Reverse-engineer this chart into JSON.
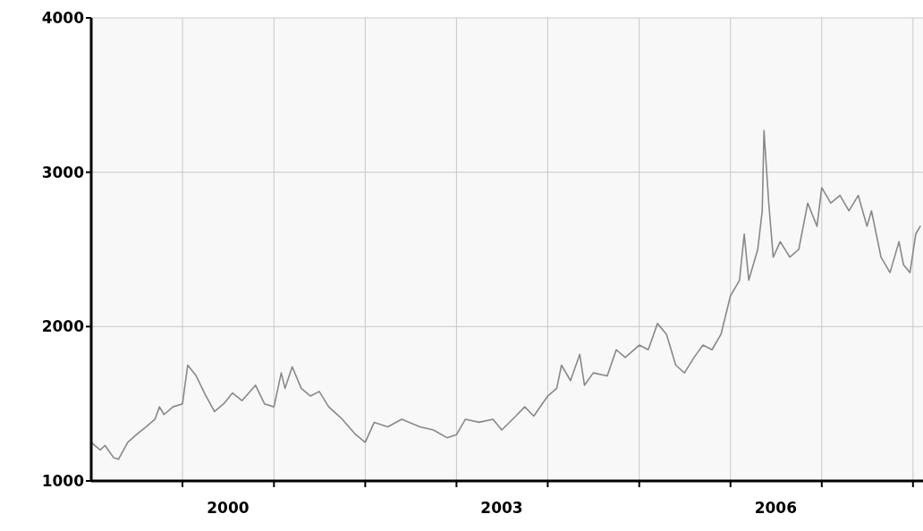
{
  "chart_data": {
    "type": "line",
    "xlim": [
      "1999-01-01",
      "2008-02-10"
    ],
    "ylim": [
      1000,
      4000
    ],
    "yticks": [
      1000,
      2000,
      3000,
      4000
    ],
    "xticks": [
      {
        "value": "2000-01-01",
        "label": null
      },
      {
        "value": "2000-07-01",
        "label": "2000"
      },
      {
        "value": "2001-01-01",
        "label": null
      },
      {
        "value": "2002-01-01",
        "label": null
      },
      {
        "value": "2003-01-01",
        "label": null
      },
      {
        "value": "2003-07-01",
        "label": "2003"
      },
      {
        "value": "2004-01-01",
        "label": null
      },
      {
        "value": "2005-01-01",
        "label": null
      },
      {
        "value": "2006-01-01",
        "label": null
      },
      {
        "value": "2006-07-01",
        "label": "2006"
      },
      {
        "value": "2007-01-01",
        "label": null
      },
      {
        "value": "2008-01-01",
        "label": null
      }
    ],
    "grid": true,
    "marker": "none",
    "line_style": "solid",
    "series": [
      {
        "color": "#888888",
        "x": [
          "1999-01-01",
          "1999-02-06",
          "1999-02-25",
          "1999-04-01",
          "1999-04-20",
          "1999-05-27",
          "1999-07-01",
          "1999-08-08",
          "1999-09-13",
          "1999-10-01",
          "1999-10-19",
          "1999-11-24",
          "2000-01-01",
          "2000-01-22",
          "2000-02-25",
          "2000-04-01",
          "2000-05-08",
          "2000-06-14",
          "2000-07-19",
          "2000-08-26",
          "2000-10-19",
          "2000-11-24",
          "2001-01-01",
          "2001-01-30",
          "2001-02-14",
          "2001-03-15",
          "2001-04-20",
          "2001-05-27",
          "2001-07-01",
          "2001-08-08",
          "2001-10-01",
          "2001-11-24",
          "2002-01-01",
          "2002-02-06",
          "2002-04-01",
          "2002-05-27",
          "2002-08-08",
          "2002-10-01",
          "2002-11-24",
          "2003-01-01",
          "2003-02-06",
          "2003-04-01",
          "2003-05-27",
          "2003-07-01",
          "2003-08-26",
          "2003-10-01",
          "2003-11-06",
          "2004-01-01",
          "2004-02-06",
          "2004-02-25",
          "2004-04-01",
          "2004-05-08",
          "2004-05-27",
          "2004-07-01",
          "2004-08-26",
          "2004-10-01",
          "2004-11-06",
          "2005-01-01",
          "2005-02-06",
          "2005-03-15",
          "2005-04-20",
          "2005-05-27",
          "2005-07-01",
          "2005-08-08",
          "2005-09-13",
          "2005-10-19",
          "2005-11-24",
          "2006-01-01",
          "2006-02-06",
          "2006-02-25",
          "2006-03-15",
          "2006-04-20",
          "2006-05-08",
          "2006-05-15",
          "2006-06-03",
          "2006-06-21",
          "2006-07-19",
          "2006-08-26",
          "2006-10-01",
          "2006-11-06",
          "2006-12-13",
          "2007-01-01",
          "2007-02-06",
          "2007-03-15",
          "2007-04-20",
          "2007-05-27",
          "2007-07-01",
          "2007-07-19",
          "2007-08-26",
          "2007-10-01",
          "2007-10-19",
          "2007-11-06",
          "2007-11-24",
          "2007-12-20",
          "2008-01-12",
          "2008-01-30"
        ],
        "values": [
          1250,
          1200,
          1230,
          1150,
          1140,
          1250,
          1300,
          1350,
          1400,
          1480,
          1430,
          1480,
          1500,
          1750,
          1680,
          1560,
          1450,
          1500,
          1570,
          1520,
          1620,
          1500,
          1480,
          1700,
          1600,
          1740,
          1600,
          1550,
          1580,
          1480,
          1400,
          1300,
          1250,
          1380,
          1350,
          1400,
          1350,
          1330,
          1280,
          1300,
          1400,
          1380,
          1400,
          1330,
          1420,
          1480,
          1420,
          1550,
          1600,
          1750,
          1650,
          1820,
          1620,
          1700,
          1680,
          1850,
          1800,
          1880,
          1850,
          2020,
          1950,
          1750,
          1700,
          1800,
          1880,
          1850,
          1950,
          2200,
          2300,
          2600,
          2300,
          2500,
          2750,
          3270,
          2800,
          2450,
          2550,
          2450,
          2500,
          2800,
          2650,
          2900,
          2800,
          2850,
          2750,
          2850,
          2650,
          2750,
          2450,
          2350,
          2450,
          2550,
          2400,
          2350,
          2600,
          2650
        ]
      }
    ]
  }
}
